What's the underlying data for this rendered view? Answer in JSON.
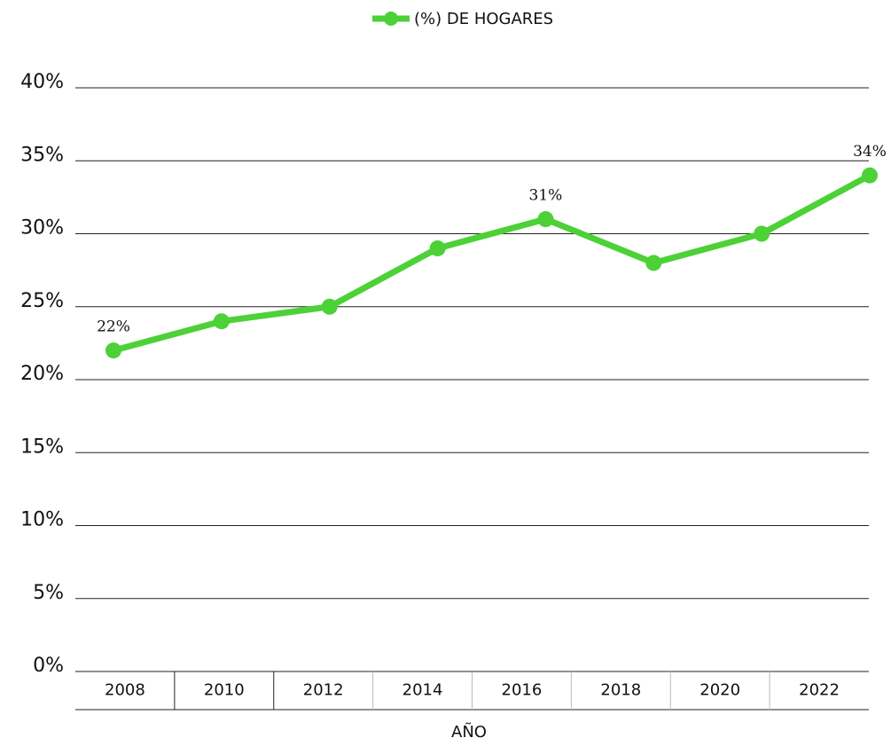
{
  "chart_data": {
    "type": "line",
    "x_label": "AÑO",
    "categories": [
      "2008",
      "2010",
      "2012",
      "2014",
      "2016",
      "2018",
      "2020",
      "2022"
    ],
    "series": [
      {
        "name": "(%) DE HOGARES",
        "color": "#4cd137",
        "values": [
          22,
          24,
          25,
          29,
          31,
          28,
          30,
          34
        ],
        "value_labels": [
          "22%",
          null,
          null,
          null,
          "31%",
          null,
          null,
          "34%"
        ]
      }
    ],
    "ylim": [
      0,
      40
    ],
    "yticks": [
      {
        "value": 0,
        "label": "0%"
      },
      {
        "value": 5,
        "label": "5%"
      },
      {
        "value": 10,
        "label": "10%"
      },
      {
        "value": 15,
        "label": "15%"
      },
      {
        "value": 20,
        "label": "20%"
      },
      {
        "value": 25,
        "label": "25%"
      },
      {
        "value": 30,
        "label": "30%"
      },
      {
        "value": 35,
        "label": "35%"
      },
      {
        "value": 40,
        "label": "40%"
      }
    ],
    "grid": true,
    "legend": "top"
  }
}
